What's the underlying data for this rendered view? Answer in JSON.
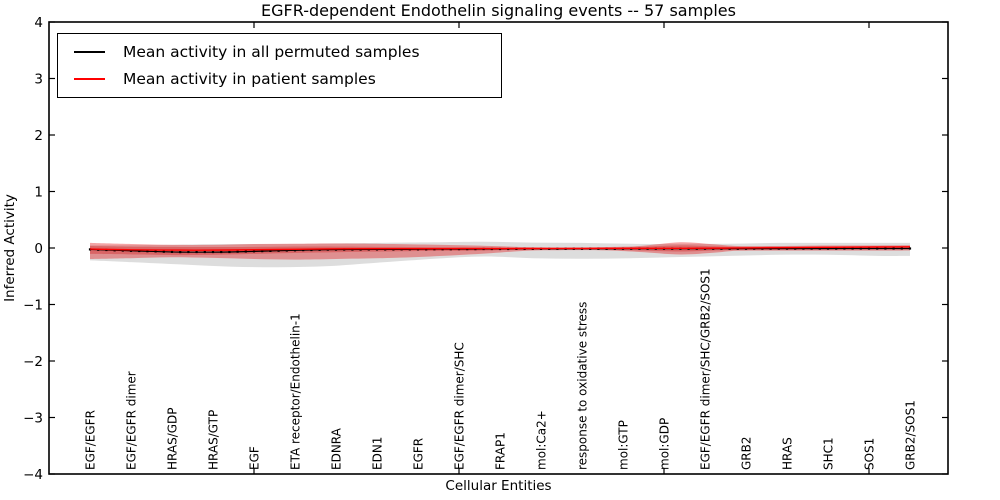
{
  "title": "EGFR-dependent Endothelin signaling events -- 57 samples",
  "axes": {
    "ylabel": "Inferred Activity",
    "xlabel": "Cellular Entities",
    "yticks": [
      {
        "v": 4,
        "label": "4"
      },
      {
        "v": 3,
        "label": "3"
      },
      {
        "v": 2,
        "label": "2"
      },
      {
        "v": 1,
        "label": "1"
      },
      {
        "v": 0,
        "label": "0"
      },
      {
        "v": -1,
        "label": "−1"
      },
      {
        "v": -2,
        "label": "−2"
      },
      {
        "v": -3,
        "label": "−3"
      },
      {
        "v": -4,
        "label": "−4"
      }
    ]
  },
  "legend": {
    "items": [
      {
        "label": "Mean activity in all permuted samples",
        "color": "#000000"
      },
      {
        "label": "Mean activity in patient samples",
        "color": "#ff0000"
      }
    ]
  },
  "colors": {
    "permuted_line": "#000000",
    "patient_line": "#ff0000",
    "permuted_band": "rgba(128,128,128,0.27)",
    "patient_band": "rgba(228,28,30,0.40)",
    "patient_band_inner": "rgba(205,22,25,0.35)",
    "frame": "#000000"
  },
  "chart_data": {
    "type": "line",
    "title": "EGFR-dependent Endothelin signaling events -- 57 samples",
    "xlabel": "Cellular Entities",
    "ylabel": "Inferred Activity",
    "ylim": [
      -4,
      4
    ],
    "grid": false,
    "legend_position": "upper left",
    "categories": [
      "EGF/EGFR",
      "EGF/EGFR dimer",
      "HRAS/GDP",
      "HRAS/GTP",
      "EGF",
      "ETA receptor/Endothelin-1",
      "EDNRA",
      "EDN1",
      "EGFR",
      "EGF/EGFR dimer/SHC",
      "FRAP1",
      "mol:Ca2+",
      "response to oxidative stress",
      "mol:GTP",
      "mol:GDP",
      "EGF/EGFR dimer/SHC/GRB2/SOS1",
      "GRB2",
      "HRAS",
      "SHC1",
      "SOS1",
      "GRB2/SOS1"
    ],
    "frame_tick_category_indices": [
      4,
      9,
      14,
      19
    ],
    "series": [
      {
        "name": "Mean activity in all permuted samples",
        "line": [
          [
            0,
            -0.025
          ],
          [
            0.05,
            -0.05
          ],
          [
            0.11,
            -0.072
          ],
          [
            0.17,
            -0.07
          ],
          [
            0.23,
            -0.048
          ],
          [
            0.29,
            -0.028
          ],
          [
            0.35,
            -0.025
          ],
          [
            0.42,
            -0.022
          ],
          [
            0.48,
            -0.018
          ],
          [
            0.54,
            -0.016
          ],
          [
            0.6,
            -0.014
          ],
          [
            0.66,
            -0.013
          ],
          [
            0.72,
            -0.013
          ],
          [
            0.78,
            -0.012
          ],
          [
            0.84,
            -0.011
          ],
          [
            0.9,
            -0.01
          ],
          [
            0.96,
            -0.009
          ],
          [
            1,
            -0.009
          ]
        ],
        "band": [
          [
            0,
            0.05,
            -0.22
          ],
          [
            0.05,
            0.05,
            -0.25
          ],
          [
            0.11,
            0.06,
            -0.29
          ],
          [
            0.17,
            0.07,
            -0.33
          ],
          [
            0.23,
            0.07,
            -0.34
          ],
          [
            0.29,
            0.08,
            -0.32
          ],
          [
            0.35,
            0.09,
            -0.26
          ],
          [
            0.42,
            0.1,
            -0.19
          ],
          [
            0.48,
            0.11,
            -0.15
          ],
          [
            0.54,
            0.095,
            -0.18
          ],
          [
            0.6,
            0.09,
            -0.19
          ],
          [
            0.66,
            0.075,
            -0.18
          ],
          [
            0.72,
            0.07,
            -0.16
          ],
          [
            0.78,
            0.075,
            -0.14
          ],
          [
            0.84,
            0.09,
            -0.12
          ],
          [
            0.9,
            0.09,
            -0.12
          ],
          [
            0.96,
            0.09,
            -0.14
          ],
          [
            1,
            0.09,
            -0.14
          ]
        ],
        "markers": true
      },
      {
        "name": "Mean activity in patient samples",
        "line": [
          [
            0,
            -0.02
          ],
          [
            0.05,
            -0.032
          ],
          [
            0.11,
            -0.038
          ],
          [
            0.17,
            -0.036
          ],
          [
            0.23,
            -0.026
          ],
          [
            0.29,
            -0.016
          ],
          [
            0.35,
            -0.013
          ],
          [
            0.42,
            -0.012
          ],
          [
            0.48,
            -0.01
          ],
          [
            0.54,
            -0.009
          ],
          [
            0.6,
            -0.007
          ],
          [
            0.66,
            -0.006
          ],
          [
            0.72,
            -0.006
          ],
          [
            0.78,
            -0.001
          ],
          [
            0.84,
            0.006
          ],
          [
            0.9,
            0.012
          ],
          [
            0.96,
            0.018
          ],
          [
            1,
            0.021
          ]
        ],
        "band": [
          [
            0,
            0.09,
            -0.195
          ],
          [
            0.05,
            0.07,
            -0.18
          ],
          [
            0.1,
            0.055,
            -0.165
          ],
          [
            0.15,
            0.055,
            -0.175
          ],
          [
            0.2,
            0.07,
            -0.195
          ],
          [
            0.25,
            0.075,
            -0.205
          ],
          [
            0.3,
            0.08,
            -0.195
          ],
          [
            0.37,
            0.07,
            -0.175
          ],
          [
            0.43,
            0.055,
            -0.14
          ],
          [
            0.49,
            0.035,
            -0.09
          ],
          [
            0.54,
            0.012,
            -0.045
          ],
          [
            0.59,
            0.01,
            -0.038
          ],
          [
            0.63,
            0.018,
            -0.042
          ],
          [
            0.67,
            0.035,
            -0.07
          ],
          [
            0.72,
            0.1,
            -0.115
          ],
          [
            0.76,
            0.065,
            -0.085
          ],
          [
            0.79,
            0.035,
            -0.05
          ],
          [
            0.84,
            0.035,
            -0.046
          ],
          [
            0.9,
            0.045,
            -0.046
          ],
          [
            0.96,
            0.045,
            -0.046
          ],
          [
            1,
            0.05,
            -0.045
          ]
        ],
        "band_inner": [
          [
            0,
            0.035,
            -0.105
          ],
          [
            0.06,
            0.022,
            -0.115
          ],
          [
            0.11,
            0.018,
            -0.125
          ],
          [
            0.17,
            0.018,
            -0.115
          ],
          [
            0.24,
            0.025,
            -0.09
          ],
          [
            0.3,
            0.025,
            -0.075
          ],
          [
            0.37,
            0.02,
            -0.06
          ],
          [
            0.43,
            0.015,
            -0.05
          ],
          [
            0.48,
            0.01,
            -0.045
          ],
          [
            0.54,
            0.002,
            -0.025
          ],
          [
            0.6,
            0.002,
            -0.025
          ],
          [
            0.63,
            0.006,
            -0.03
          ],
          [
            0.67,
            0.02,
            -0.045
          ],
          [
            0.72,
            0.046,
            -0.062
          ],
          [
            0.76,
            0.03,
            -0.045
          ],
          [
            0.79,
            0.02,
            -0.035
          ],
          [
            0.86,
            0.022,
            -0.028
          ],
          [
            1,
            0.025,
            -0.025
          ]
        ],
        "markers": false
      }
    ]
  }
}
